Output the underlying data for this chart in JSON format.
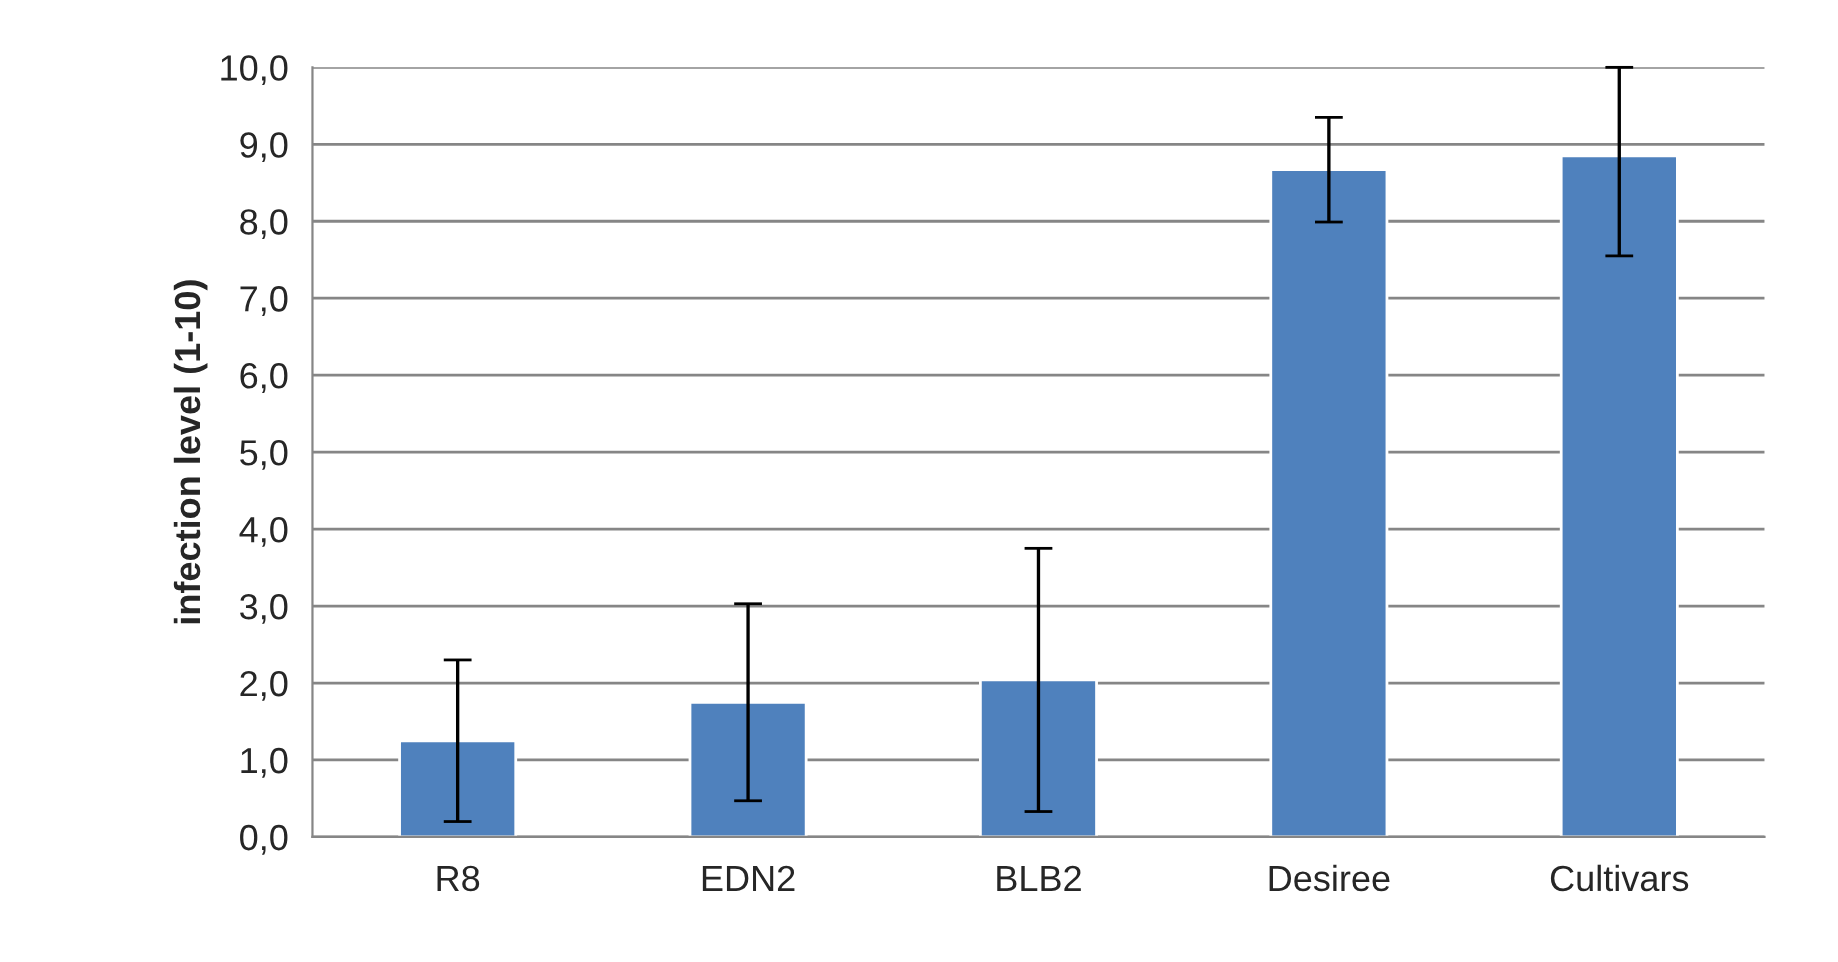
{
  "chart_data": {
    "type": "bar",
    "ylabel": "infection level (1-10)",
    "categories": [
      "R8",
      "EDN2",
      "BLB2",
      "Desiree",
      "Cultivars"
    ],
    "values": [
      1.25,
      1.75,
      2.04,
      8.67,
      8.85
    ],
    "errors": [
      1.05,
      1.28,
      1.71,
      0.68,
      [
        7.55,
        10.0
      ]
    ],
    "color": "#4f81bd",
    "ylim": [
      0,
      10
    ],
    "yticks": [
      {
        "value": 0,
        "label": "0,0"
      },
      {
        "value": 1,
        "label": "1,0"
      },
      {
        "value": 2,
        "label": "2,0"
      },
      {
        "value": 3,
        "label": "3,0"
      },
      {
        "value": 4,
        "label": "4,0"
      },
      {
        "value": 5,
        "label": "5,0"
      },
      {
        "value": 6,
        "label": "6,0"
      },
      {
        "value": 7,
        "label": "7,0"
      },
      {
        "value": 8,
        "label": "8,0"
      },
      {
        "value": 9,
        "label": "9,0"
      },
      {
        "value": 10,
        "label": "10,0"
      }
    ],
    "grid": "y"
  }
}
